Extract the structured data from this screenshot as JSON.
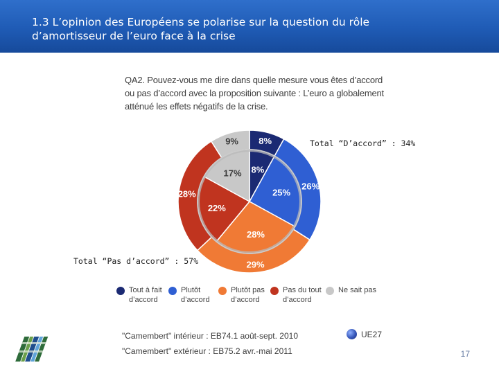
{
  "header": {
    "title": "1.3 L’opinion des Européens se polarise sur la question du rôle\nd’amortisseur de l’euro face à la crise"
  },
  "question": "QA2. Pouvez-vous me dire dans quelle mesure vous êtes d’accord ou pas d’accord avec la proposition suivante : L’euro a globalement atténué les effets négatifs de la crise.",
  "annotations": {
    "agree_total": "Total “D’accord” : 34%",
    "disagree_total": "Total “Pas d’accord” : 57%"
  },
  "chart_data": {
    "type": "pie",
    "variant": "nested donut",
    "categories": [
      "Tout à fait d’accord",
      "Plutôt d’accord",
      "Plutôt pas d’accord",
      "Pas du tout d’accord",
      "Ne sait pas"
    ],
    "colors": [
      "#1b2a73",
      "#2f5fd3",
      "#f07a35",
      "#c0341f",
      "#c8c8c8"
    ],
    "series": [
      {
        "name": "\"Camembert\" extérieur : EB75.2 avr.-mai 2011",
        "values": [
          8,
          26,
          29,
          28,
          9
        ],
        "labels": [
          "8%",
          "26%",
          "29%",
          "28%",
          "9%"
        ]
      },
      {
        "name": "\"Camembert\" intérieur : EB74.1 août-sept. 2010",
        "values": [
          8,
          25,
          28,
          22,
          17
        ],
        "labels": [
          "8%",
          "25%",
          "28%",
          "22%",
          "17%"
        ]
      }
    ]
  },
  "legend": [
    {
      "label": "Tout à fait\nd’accord",
      "color": "#1b2a73"
    },
    {
      "label": "Plutôt\nd’accord",
      "color": "#2f5fd3"
    },
    {
      "label": "Plutôt pas\nd’accord",
      "color": "#f07a35"
    },
    {
      "label": "Pas du tout\nd’accord",
      "color": "#c0341f"
    },
    {
      "label": "Ne sait pas",
      "color": "#c8c8c8"
    }
  ],
  "source": {
    "inner": "\"Camembert\" intérieur : EB74.1 août-sept. 2010",
    "outer": "\"Camembert\" extérieur : EB75.2 avr.-mai 2011",
    "scope": "UE27"
  },
  "page_number": "17"
}
